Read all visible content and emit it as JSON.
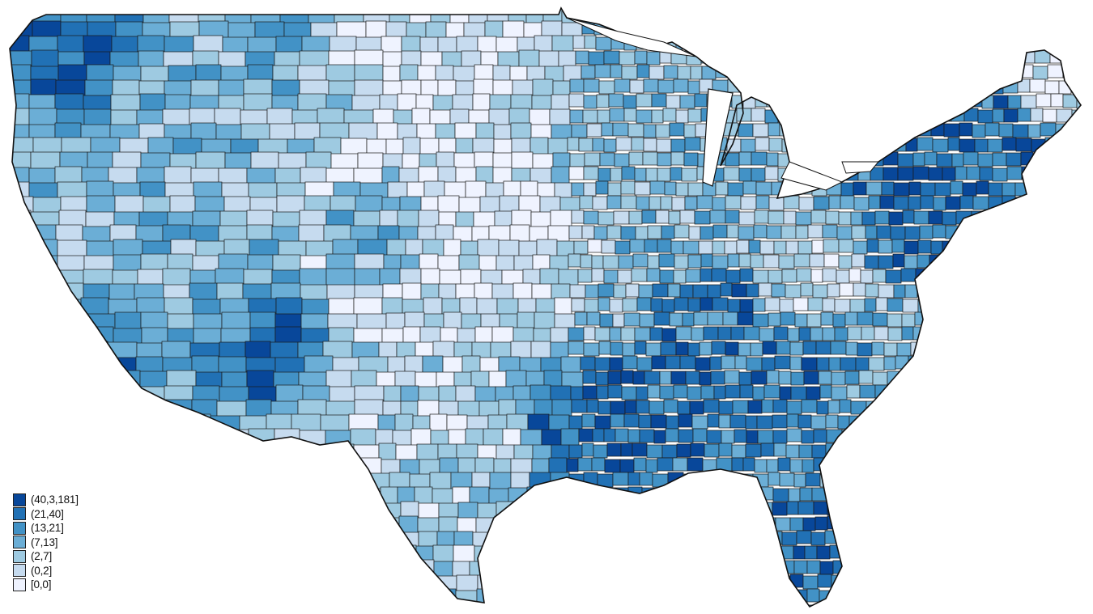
{
  "map": {
    "type": "choropleth",
    "geography": "Contiguous United States, county level",
    "outline_color": "#1a1a1a",
    "background": "#ffffff"
  },
  "legend": {
    "position": "bottom-left",
    "items": [
      {
        "label": "(40,3,181]",
        "color": "#08479a"
      },
      {
        "label": "(21,40]",
        "color": "#2171b5"
      },
      {
        "label": "(13,21]",
        "color": "#4292c6"
      },
      {
        "label": "(7,13]",
        "color": "#6baed6"
      },
      {
        "label": "(2,7]",
        "color": "#9ecae1"
      },
      {
        "label": "(0,2]",
        "color": "#c6dbef"
      },
      {
        "label": "[0,0]",
        "color": "#eff3ff"
      }
    ]
  },
  "chart_data": {
    "type": "heatmap",
    "subtype": "choropleth-map",
    "title": "",
    "region": "Contiguous United States (counties)",
    "bins": [
      {
        "range": "(40,3,181]",
        "color": "#08479a"
      },
      {
        "range": "(21,40]",
        "color": "#2171b5"
      },
      {
        "range": "(13,21]",
        "color": "#4292c6"
      },
      {
        "range": "(7,13]",
        "color": "#6baed6"
      },
      {
        "range": "(2,7]",
        "color": "#9ecae1"
      },
      {
        "range": "(0,2]",
        "color": "#c6dbef"
      },
      {
        "range": "[0,0]",
        "color": "#eff3ff"
      }
    ],
    "regional_pattern": [
      {
        "region": "Northeast / New England coast",
        "dominant_bin": "(40,3,181]"
      },
      {
        "region": "Lower Mississippi / Louisiana",
        "dominant_bin": "(40,3,181]"
      },
      {
        "region": "Southeast (GA, SC, AL)",
        "dominant_bin": "(21,40]"
      },
      {
        "region": "South Florida",
        "dominant_bin": "(40,3,181]"
      },
      {
        "region": "Great Plains (KS, NE, Dakotas, W TX)",
        "dominant_bin": "[0,0]"
      },
      {
        "region": "Appalachia (KY, WV)",
        "dominant_bin": "[0,0]"
      },
      {
        "region": "Northern Maine",
        "dominant_bin": "[0,0]"
      },
      {
        "region": "Western Washington",
        "dominant_bin": "(40,3,181]"
      },
      {
        "region": "Arizona / Colorado Front Range",
        "dominant_bin": "(40,3,181]"
      },
      {
        "region": "Mountain West (NV, UT, WY, MT)",
        "dominant_bin": "(2,7]"
      }
    ],
    "legend_position": "bottom-left"
  }
}
